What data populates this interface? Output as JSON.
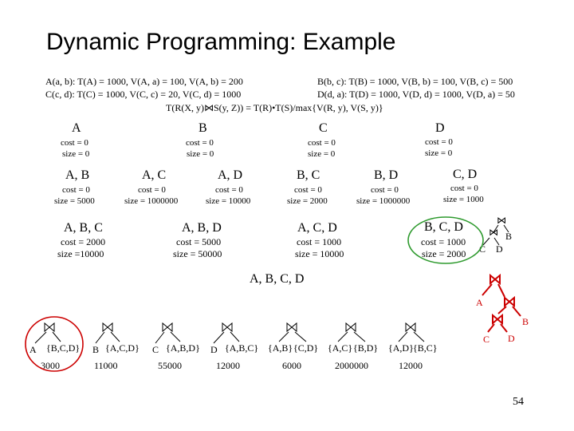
{
  "title": "Dynamic Programming: Example",
  "statements": {
    "ab": "A(a, b): T(A) = 1000, V(A, a) = 100, V(A, b) = 200",
    "bc": "B(b, c): T(B) = 1000, V(B, b) = 100, V(B, c) = 500",
    "cd": "C(c, d): T(C) = 1000, V(C, c) = 20, V(C, d) = 1000",
    "da": "D(d, a): T(D) = 1000, V(D, d) = 1000, V(D, a) = 50",
    "formula_pre": "T(R(X, y)",
    "formula_join": "⋈",
    "formula_post": "S(y, Z)) = T(R)•T(S)/max{V(R, y), V(S, y)}"
  },
  "singles": [
    {
      "rel": "A",
      "cost": "cost = 0",
      "size": "size = 0"
    },
    {
      "rel": "B",
      "cost": "cost = 0",
      "size": "size = 0"
    },
    {
      "rel": "C",
      "cost": "cost = 0",
      "size": "size = 0"
    },
    {
      "rel": "D",
      "cost": "cost = 0",
      "size": "size = 0"
    }
  ],
  "pairs": [
    {
      "rel": "A, B",
      "cost": "cost = 0",
      "size": "size = 5000"
    },
    {
      "rel": "A, C",
      "cost": "cost = 0",
      "size": "size = 1000000"
    },
    {
      "rel": "A, D",
      "cost": "cost = 0",
      "size": "size = 10000"
    },
    {
      "rel": "B, C",
      "cost": "cost = 0",
      "size": "size = 2000"
    },
    {
      "rel": "B, D",
      "cost": "cost = 0",
      "size": "size = 1000000"
    },
    {
      "rel": "C, D",
      "cost": "cost = 0",
      "size": "size = 1000"
    }
  ],
  "triples": [
    {
      "rel": "A, B, C",
      "cost": "cost = 2000",
      "size": "size =10000"
    },
    {
      "rel": "A, B, D",
      "cost": "cost = 5000",
      "size": "size = 50000"
    },
    {
      "rel": "A, C, D",
      "cost": "cost = 1000",
      "size": "size = 10000"
    },
    {
      "rel": "B, C, D",
      "cost": "cost = 1000",
      "size": "size = 2000"
    }
  ],
  "quad": "A, B, C, D",
  "tree_small": {
    "join": "⋈",
    "left": "C",
    "right": "D",
    "top": "B"
  },
  "plans": [
    {
      "left": "A",
      "right": "{B,C,D}",
      "cost": "3000"
    },
    {
      "left": "B",
      "right": "{A,C,D}",
      "cost": "11000"
    },
    {
      "left": "C",
      "right": "{A,B,D}",
      "cost": "55000"
    },
    {
      "left": "D",
      "right": "{A,B,C}",
      "cost": "12000"
    },
    {
      "left": "{A,B}",
      "right": "{C,D}",
      "cost": "6000"
    },
    {
      "left": "{A,C}",
      "right": "{B,D}",
      "cost": "2000000"
    },
    {
      "left": "{A,D}",
      "right": "{B,C}",
      "cost": "12000"
    }
  ],
  "final_tree": {
    "a": "A",
    "b": "B",
    "c": "C",
    "d": "D"
  },
  "page_number": "54",
  "colors": {
    "highlight_red": "#cc0000",
    "highlight_green": "#2e9a2e",
    "join_red": "#cc0000"
  }
}
